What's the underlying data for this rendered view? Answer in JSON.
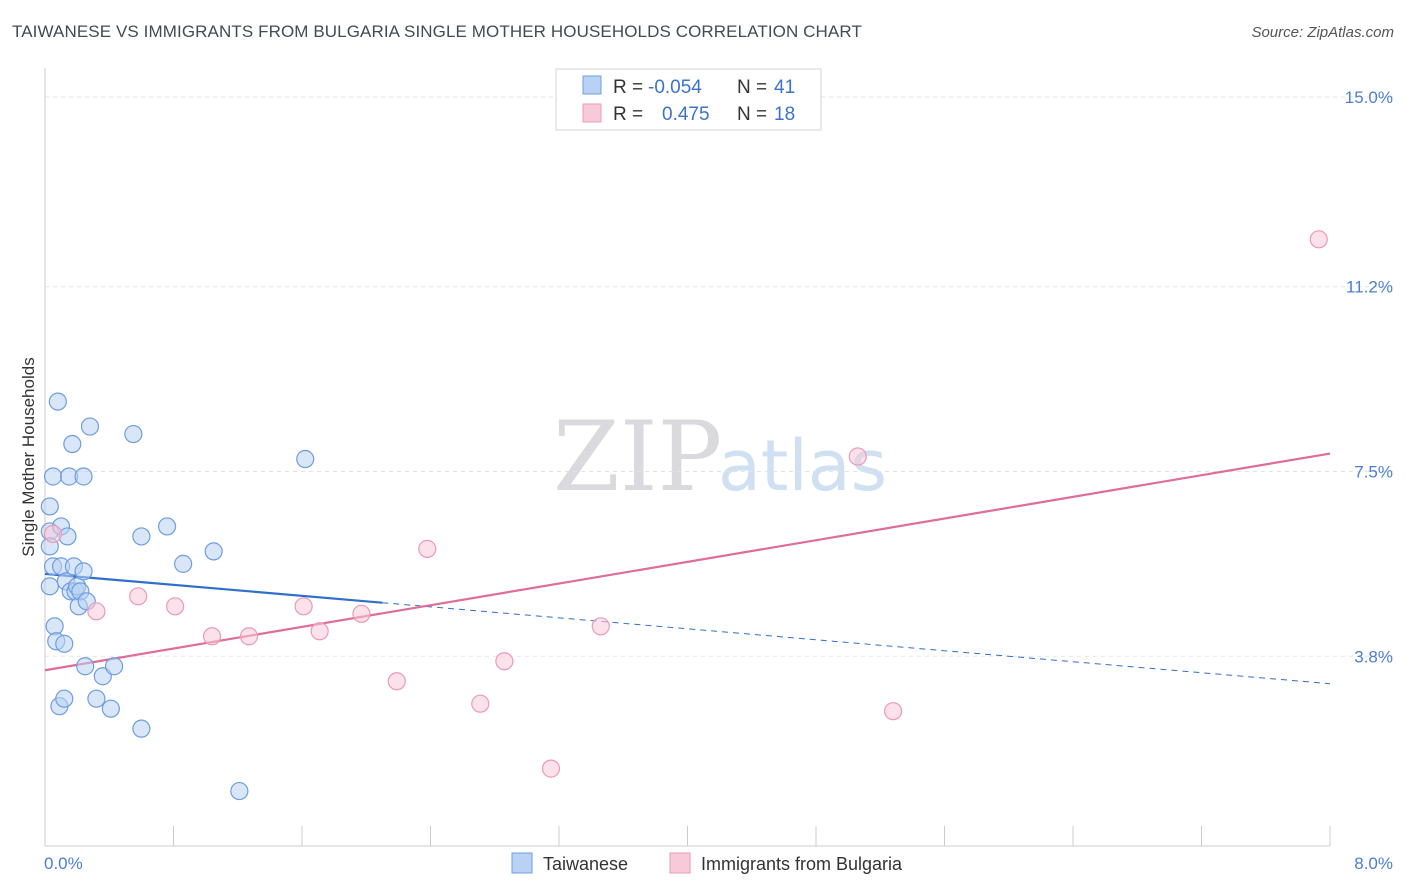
{
  "title": "TAIWANESE VS IMMIGRANTS FROM BULGARIA SINGLE MOTHER HOUSEHOLDS CORRELATION CHART",
  "source": "Source: ZipAtlas.com",
  "watermark": {
    "part1": "ZIP",
    "part2": "atlas"
  },
  "colors": {
    "blue": "#4a7fd0",
    "blue_fill": "#b9d2f3",
    "blue_line": "#2f6fcc",
    "pink": "#e06b95",
    "pink_fill": "#f8c9d8",
    "pink_line": "#df6d95"
  },
  "legend": {
    "row1": {
      "r_label": "R = ",
      "r_value": "-0.054",
      "n_label": "N = ",
      "n_value": "41"
    },
    "row2": {
      "r_label": "R = ",
      "r_value": "0.475",
      "n_label": "N = ",
      "n_value": "18"
    }
  },
  "chart_data": {
    "type": "scatter",
    "title": "TAIWANESE VS IMMIGRANTS FROM BULGARIA SINGLE MOTHER HOUSEHOLDS CORRELATION CHART",
    "xlabel": "",
    "ylabel": "Single Mother Households",
    "xlim": [
      0,
      8.0
    ],
    "ylim": [
      0,
      15.5
    ],
    "x_tick_labels": [
      "0.0%",
      "8.0%"
    ],
    "y_ticks": [
      {
        "value": 3.8,
        "label": "3.8%"
      },
      {
        "value": 7.5,
        "label": "7.5%"
      },
      {
        "value": 11.2,
        "label": "11.2%"
      },
      {
        "value": 15.0,
        "label": "15.0%"
      }
    ],
    "series": [
      {
        "name": "Taiwanese",
        "color": "#4a7fd0",
        "points": [
          [
            0.03,
            6.8
          ],
          [
            0.03,
            6.3
          ],
          [
            0.03,
            6.0
          ],
          [
            0.03,
            5.2
          ],
          [
            0.05,
            5.6
          ],
          [
            0.05,
            7.4
          ],
          [
            0.06,
            4.4
          ],
          [
            0.07,
            4.1
          ],
          [
            0.08,
            8.9
          ],
          [
            0.09,
            2.8
          ],
          [
            0.1,
            6.4
          ],
          [
            0.1,
            5.6
          ],
          [
            0.12,
            4.05
          ],
          [
            0.12,
            2.95
          ],
          [
            0.13,
            5.3
          ],
          [
            0.14,
            6.2
          ],
          [
            0.15,
            7.4
          ],
          [
            0.16,
            5.1
          ],
          [
            0.17,
            8.05
          ],
          [
            0.18,
            5.6
          ],
          [
            0.19,
            5.1
          ],
          [
            0.2,
            5.2
          ],
          [
            0.21,
            4.8
          ],
          [
            0.22,
            5.1
          ],
          [
            0.24,
            7.4
          ],
          [
            0.24,
            5.5
          ],
          [
            0.25,
            3.6
          ],
          [
            0.26,
            4.9
          ],
          [
            0.28,
            8.4
          ],
          [
            0.32,
            2.95
          ],
          [
            0.36,
            3.4
          ],
          [
            0.41,
            2.75
          ],
          [
            0.43,
            3.6
          ],
          [
            0.55,
            8.25
          ],
          [
            0.6,
            6.2
          ],
          [
            0.6,
            2.35
          ],
          [
            0.76,
            6.4
          ],
          [
            0.86,
            5.65
          ],
          [
            1.05,
            5.9
          ],
          [
            1.21,
            1.1
          ],
          [
            1.62,
            7.75
          ]
        ]
      },
      {
        "name": "Immigrants from Bulgaria",
        "color": "#e06b95",
        "points": [
          [
            0.05,
            6.25
          ],
          [
            0.32,
            4.7
          ],
          [
            0.58,
            5.0
          ],
          [
            0.81,
            4.8
          ],
          [
            1.04,
            4.2
          ],
          [
            1.27,
            4.2
          ],
          [
            1.61,
            4.8
          ],
          [
            1.71,
            4.3
          ],
          [
            1.97,
            4.65
          ],
          [
            2.19,
            3.3
          ],
          [
            2.38,
            5.95
          ],
          [
            2.71,
            2.85
          ],
          [
            2.86,
            3.7
          ],
          [
            3.15,
            1.55
          ],
          [
            3.46,
            4.4
          ],
          [
            5.06,
            7.8
          ],
          [
            5.28,
            2.7
          ],
          [
            7.93,
            12.15
          ]
        ]
      }
    ],
    "trend_lines": [
      {
        "series": "Taiwanese",
        "x_start": 0.0,
        "y_start": 5.45,
        "x_solid_end": 2.1,
        "x_end": 8.0,
        "y_end": 3.25
      },
      {
        "series": "Immigrants from Bulgaria",
        "x_start": 0.0,
        "y_start": 3.52,
        "x_end": 8.0,
        "y_end": 7.86
      }
    ]
  }
}
